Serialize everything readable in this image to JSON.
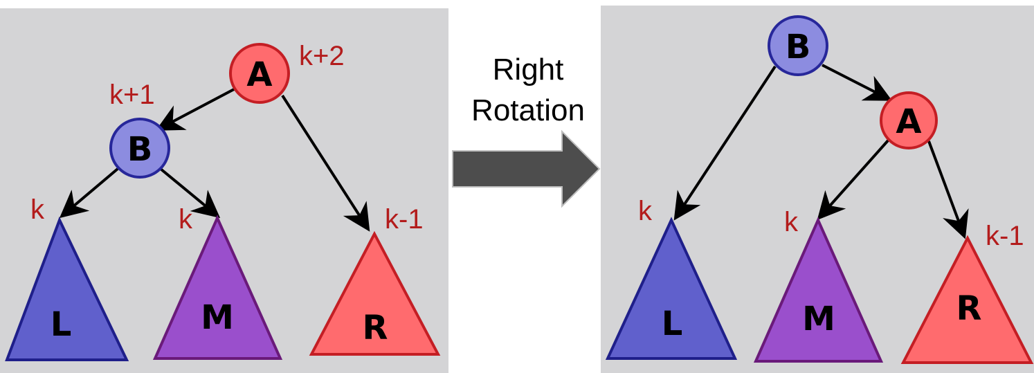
{
  "caption": {
    "line1": "Right",
    "line2": "Rotation"
  },
  "colors": {
    "panel": "#d4d4d6",
    "node_red_fill": "#ff6b6e",
    "node_red_stroke": "#c41e24",
    "node_blue_fill": "#8c8ce0",
    "node_blue_stroke": "#27279a",
    "tri_blue_fill": "#6060cc",
    "tri_blue_stroke": "#1f1f8a",
    "tri_purple_fill": "#9a4fcc",
    "tri_purple_stroke": "#6a1a7a",
    "tri_red_fill": "#ff6b6e",
    "tri_red_stroke": "#c41e24",
    "annotation": "#b31c1c",
    "arrow_fill": "#4d4d4d"
  },
  "before": {
    "node_a": "A",
    "node_b": "B",
    "label_a": "k+2",
    "label_b": "k+1",
    "label_l": "k",
    "label_m": "k",
    "label_r": "k-1",
    "tri_l": "L",
    "tri_m": "M",
    "tri_r": "R"
  },
  "after": {
    "node_b": "B",
    "node_a": "A",
    "label_l": "k",
    "label_m": "k",
    "label_r": "k-1",
    "tri_l": "L",
    "tri_m": "M",
    "tri_r": "R"
  }
}
